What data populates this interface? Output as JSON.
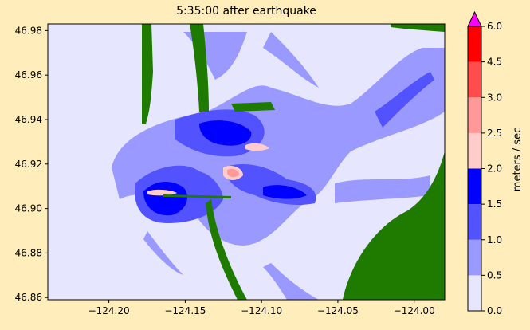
{
  "chart_data": {
    "type": "heatmap",
    "title": "5:35:00 after earthquake",
    "xlabel": "",
    "ylabel": "",
    "xlim": [
      -124.24,
      -123.98
    ],
    "ylim": [
      46.859,
      46.983
    ],
    "x_ticks": [
      "−124.20",
      "−124.15",
      "−124.10",
      "−124.05",
      "−124.00"
    ],
    "x_tick_values": [
      -124.2,
      -124.15,
      -124.1,
      -124.05,
      -124.0
    ],
    "y_ticks": [
      "46.86",
      "46.88",
      "46.90",
      "46.92",
      "46.94",
      "46.96",
      "46.98"
    ],
    "y_tick_values": [
      46.86,
      46.88,
      46.9,
      46.92,
      46.94,
      46.96,
      46.98
    ],
    "colorbar": {
      "label": "meters / sec",
      "levels": [
        0.0,
        0.5,
        1.0,
        1.5,
        2.0,
        2.5,
        3.0,
        4.5,
        6.0
      ],
      "tick_labels": [
        "0.0",
        "0.5",
        "1.0",
        "1.5",
        "2.0",
        "2.5",
        "3.0",
        "4.5",
        "6.0"
      ],
      "colors": [
        "#e6e6ff",
        "#9999ff",
        "#5252ff",
        "#0000ff",
        "#ffcccc",
        "#ff9999",
        "#ff4d4d",
        "#ff0000"
      ],
      "extend_color": "#ff00ff"
    },
    "land_color": "#1f7a00",
    "background_color": "#e6e6ff"
  }
}
